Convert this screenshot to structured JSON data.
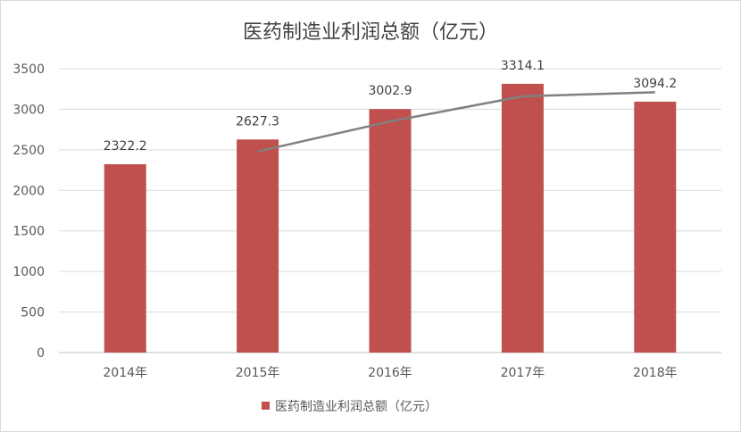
{
  "chart_data": {
    "type": "bar",
    "title": "医药制造业利润总额（亿元）",
    "categories": [
      "2014年",
      "2015年",
      "2016年",
      "2017年",
      "2018年"
    ],
    "series": [
      {
        "name": "医药制造业利润总额（亿元）",
        "values": [
          2322.2,
          2627.3,
          3002.9,
          3314.1,
          3094.2
        ],
        "color": "#c0504d"
      }
    ],
    "overlay_line": {
      "values": [
        2480,
        2850,
        3160,
        3210
      ],
      "starts_at_category": 1,
      "color": "#808080"
    },
    "data_labels": [
      "2322.2",
      "2627.3",
      "3002.9",
      "3314.1",
      "3094.2"
    ],
    "y_ticks": [
      "0",
      "500",
      "1000",
      "1500",
      "2000",
      "2500",
      "3000",
      "3500"
    ],
    "ylim": [
      0,
      3500
    ],
    "grid": true,
    "legend_position": "bottom",
    "xlabel": "",
    "ylabel": ""
  }
}
